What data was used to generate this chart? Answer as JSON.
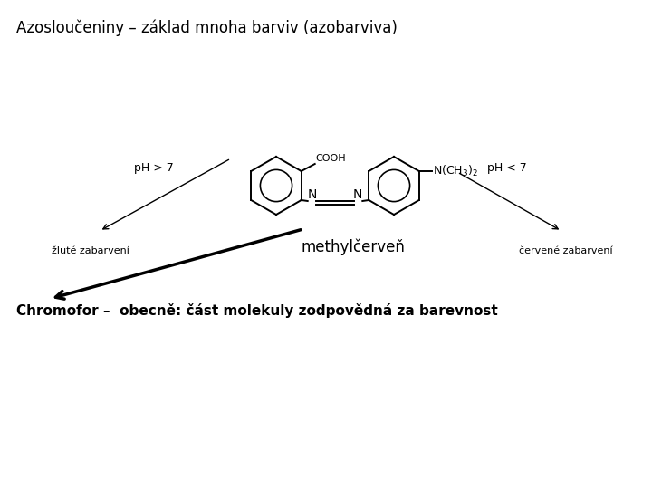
{
  "title": "Azosloučeniny – základ mnoha barviv (azobarviva)",
  "chromofor_text": "Chromofor –  obecně: část molekuly zodpovědná za barevnost",
  "methylcerven_label": "methylčerveň",
  "ph_gt7_label": "pH > 7",
  "ph_lt7_label": "pH < 7",
  "zlute_label": "žluté zabarvení",
  "cervene_label": "červené zabarvení",
  "bg_color": "#ffffff",
  "text_color": "#000000",
  "title_fontsize": 12,
  "label_fontsize": 11,
  "small_fontsize": 9,
  "annot_fontsize": 9,
  "cooh_fontsize": 8,
  "nch3_fontsize": 9,
  "n_fontsize": 10,
  "methylcerven_fontsize": 12
}
